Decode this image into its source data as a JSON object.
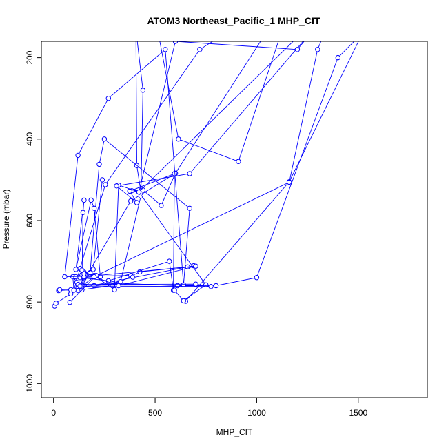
{
  "chart_data": {
    "type": "line",
    "title": "ATOM3 Northeast_Pacific_1 MHP_CIT",
    "xlabel": "MHP_CIT",
    "ylabel": "Pressure (mbar)",
    "xlim": [
      -60,
      1840
    ],
    "ylim": [
      1035,
      160
    ],
    "y_reversed": true,
    "x_ticks": [
      0,
      500,
      1000,
      1500
    ],
    "y_ticks": [
      200,
      400,
      600,
      800,
      1000
    ],
    "line_color": "#0000ff",
    "marker": "open-circle",
    "grid": false,
    "legend": "none",
    "series": [
      {
        "x": [
          5,
          12,
          85,
          120,
          200,
          320,
          610,
          800,
          1000,
          1400,
          1500,
          1550,
          1600,
          1160,
          650
        ],
        "y": [
          810,
          803,
          780,
          765,
          760,
          754,
          760,
          760,
          740,
          200,
          150,
          100,
          60,
          505,
          798
        ]
      },
      {
        "x": [
          690,
          85,
          25,
          30,
          120,
          380,
          600,
          1200,
          910,
          615,
          500,
          405,
          410,
          430,
          385,
          440,
          530,
          600
        ],
        "y": [
          711,
          770,
          772,
          770,
          772,
          552,
          484,
          20,
          455,
          400,
          100,
          120,
          465,
          530,
          527,
          525,
          563,
          484
        ]
      },
      {
        "x": [
          660,
          425,
          290,
          140,
          95,
          100,
          130,
          255,
          720,
          1100,
          370,
          410,
          440,
          430,
          330,
          200,
          115,
          110
        ],
        "y": [
          714,
          726,
          760,
          770,
          738,
          771,
          718,
          512,
          180,
          60,
          150,
          150,
          280,
          540,
          750,
          760,
          752,
          738
        ]
      },
      {
        "x": [
          110,
          200,
          300,
          320,
          420,
          600,
          1200,
          1400,
          670,
          310,
          410,
          375,
          595,
          590,
          570,
          270,
          130,
          150,
          200
        ],
        "y": [
          738,
          735,
          770,
          513,
          530,
          160,
          180,
          60,
          485,
          515,
          556,
          528,
          485,
          771,
          700,
          748,
          740,
          727,
          736
        ]
      },
      {
        "x": [
          230,
          200,
          185,
          110,
          150,
          145,
          140,
          180,
          225,
          250,
          670,
          640,
          550,
          270,
          120,
          55,
          380,
          390
        ],
        "y": [
          738,
          570,
          550,
          720,
          550,
          580,
          760,
          728,
          462,
          400,
          570,
          758,
          180,
          300,
          440,
          738,
          735,
          739
        ]
      },
      {
        "x": [
          240,
          195,
          140,
          150,
          200,
          1160,
          1300,
          1400,
          1200,
          420,
          750,
          640,
          595
        ],
        "y": [
          500,
          720,
          733,
          740,
          738,
          506,
          180,
          60,
          150,
          530,
          758,
          797,
          771
        ]
      },
      {
        "x": [
          80,
          210,
          135,
          120,
          700,
          775,
          130,
          150,
          700,
          320,
          200,
          140,
          150
        ],
        "y": [
          801,
          735,
          762,
          757,
          756,
          762,
          761,
          738,
          712,
          760,
          738,
          722,
          731
        ]
      }
    ]
  }
}
